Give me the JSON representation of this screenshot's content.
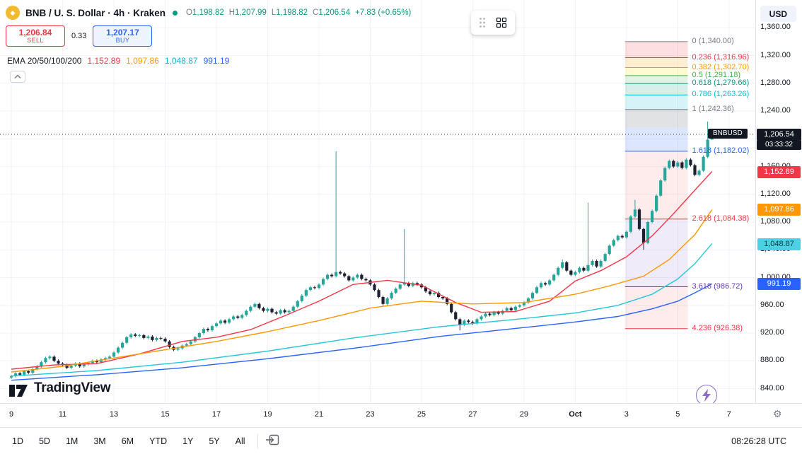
{
  "header": {
    "symbol_title": "BNB / U. S. Dollar · 4h · Kraken",
    "ohlc": {
      "o_label": "O",
      "o": "1,198.82",
      "h_label": "H",
      "h": "1,207.99",
      "l_label": "L",
      "l": "1,198.82",
      "c_label": "C",
      "c": "1,206.54",
      "change": "+7.83 (+0.65%)"
    },
    "currency_button": "USD",
    "sell": {
      "price": "1,206.84",
      "label": "SELL"
    },
    "spread": "0.33",
    "buy": {
      "price": "1,207.17",
      "label": "BUY"
    },
    "ema_legend": {
      "name": "EMA",
      "params": "20/50/100/200",
      "values": [
        {
          "text": "1,152.89",
          "color": "#f23645"
        },
        {
          "text": "1,097.86",
          "color": "#ff9800"
        },
        {
          "text": "1,048.87",
          "color": "#00bcd4"
        },
        {
          "text": "991.19",
          "color": "#2962ff"
        }
      ]
    }
  },
  "chart_data": {
    "type": "candlestick",
    "symbol": "BNBUSD",
    "exchange": "Kraken",
    "interval": "4h",
    "ylim": [
      840,
      1360
    ],
    "up_color": "#26a69a",
    "down_color": "#1c2030",
    "first_open": 856,
    "closes": [
      858,
      862,
      860,
      865,
      863,
      868,
      872,
      878,
      884,
      886,
      880,
      876,
      874,
      870,
      873,
      876,
      872,
      875,
      877,
      880,
      878,
      882,
      884,
      886,
      892,
      899,
      906,
      914,
      918,
      916,
      917,
      913,
      915,
      910,
      913,
      912,
      908,
      900,
      896,
      898,
      902,
      904,
      908,
      914,
      920,
      926,
      924,
      930,
      934,
      938,
      935,
      940,
      944,
      942,
      946,
      952,
      958,
      962,
      956,
      952,
      955,
      950,
      948,
      953,
      950,
      952,
      958,
      966,
      974,
      982,
      986,
      985,
      990,
      998,
      1004,
      1002,
      1008,
      1006,
      1002,
      996,
      1000,
      1004,
      998,
      996,
      990,
      982,
      972,
      962,
      970,
      978,
      984,
      990,
      992,
      988,
      992,
      990,
      986,
      980,
      976,
      978,
      972,
      970,
      962,
      950,
      940,
      932,
      938,
      936,
      934,
      940,
      944,
      948,
      946,
      950,
      948,
      952,
      956,
      953,
      958,
      960,
      964,
      970,
      978,
      986,
      992,
      990,
      996,
      1004,
      1014,
      1022,
      1010,
      1004,
      1008,
      1014,
      1010,
      1018,
      1024,
      1016,
      1024,
      1034,
      1046,
      1054,
      1060,
      1058,
      1066,
      1088,
      1098,
      1070,
      1050,
      1080,
      1096,
      1118,
      1140,
      1158,
      1168,
      1160,
      1166,
      1158,
      1170,
      1162,
      1148,
      1154,
      1174,
      1198.82,
      1206.54
    ],
    "wick_overrides": {
      "76": [
        1182,
        null
      ],
      "92": [
        1070,
        null
      ],
      "105": [
        null,
        924
      ],
      "129": [
        1026,
        null
      ],
      "135": [
        1108,
        null
      ],
      "146": [
        1112,
        null
      ],
      "148": [
        null,
        1040
      ],
      "163": [
        1225,
        null
      ],
      "164": [
        1207.99,
        1198.82
      ]
    },
    "current_bar": {
      "open": 1198.82,
      "high": 1207.99,
      "low": 1198.82,
      "close": 1206.54
    },
    "price_line": 1206.54,
    "emas": [
      {
        "period": 20,
        "color": "#f23645",
        "value": 1152.89,
        "points": [
          [
            0,
            868
          ],
          [
            10,
            874
          ],
          [
            20,
            876
          ],
          [
            30,
            890
          ],
          [
            40,
            908
          ],
          [
            48,
            914
          ],
          [
            56,
            925
          ],
          [
            64,
            945
          ],
          [
            72,
            966
          ],
          [
            80,
            990
          ],
          [
            88,
            996
          ],
          [
            96,
            989
          ],
          [
            104,
            964
          ],
          [
            110,
            950
          ],
          [
            118,
            951
          ],
          [
            126,
            966
          ],
          [
            132,
            995
          ],
          [
            138,
            1010
          ],
          [
            144,
            1030
          ],
          [
            150,
            1060
          ],
          [
            155,
            1092
          ],
          [
            160,
            1126
          ],
          [
            164,
            1152.89
          ]
        ]
      },
      {
        "period": 50,
        "color": "#ff9800",
        "value": 1097.86,
        "points": [
          [
            0,
            864
          ],
          [
            12,
            872
          ],
          [
            24,
            884
          ],
          [
            36,
            896
          ],
          [
            48,
            908
          ],
          [
            60,
            922
          ],
          [
            72,
            938
          ],
          [
            84,
            956
          ],
          [
            96,
            966
          ],
          [
            108,
            962
          ],
          [
            120,
            964
          ],
          [
            132,
            976
          ],
          [
            140,
            988
          ],
          [
            148,
            1002
          ],
          [
            154,
            1026
          ],
          [
            160,
            1062
          ],
          [
            164,
            1097.86
          ]
        ]
      },
      {
        "period": 100,
        "color": "#26c6da",
        "value": 1048.87,
        "points": [
          [
            0,
            858
          ],
          [
            20,
            866
          ],
          [
            40,
            878
          ],
          [
            60,
            894
          ],
          [
            80,
            913
          ],
          [
            100,
            929
          ],
          [
            120,
            941
          ],
          [
            132,
            949
          ],
          [
            142,
            960
          ],
          [
            150,
            976
          ],
          [
            156,
            998
          ],
          [
            160,
            1020
          ],
          [
            164,
            1048.87
          ]
        ]
      },
      {
        "period": 200,
        "color": "#2962ff",
        "value": 991.19,
        "points": [
          [
            0,
            852
          ],
          [
            20,
            860
          ],
          [
            40,
            870
          ],
          [
            60,
            883
          ],
          [
            80,
            898
          ],
          [
            100,
            915
          ],
          [
            120,
            928
          ],
          [
            132,
            936
          ],
          [
            142,
            944
          ],
          [
            150,
            955
          ],
          [
            156,
            966
          ],
          [
            160,
            978
          ],
          [
            164,
            991.19
          ]
        ]
      }
    ],
    "fib": {
      "x_start_index": 144,
      "x_end_index": 158,
      "levels": [
        {
          "level": "0",
          "price": 1340.0,
          "label": "0 (1,340.00)",
          "color": "#787b86"
        },
        {
          "level": "0.236",
          "price": 1316.96,
          "label": "0.236 (1,316.96)",
          "color": "#f23645"
        },
        {
          "level": "0.382",
          "price": 1302.7,
          "label": "0.382 (1,302.70)",
          "color": "#ff9800"
        },
        {
          "level": "0.5",
          "price": 1291.18,
          "label": "0.5 (1,291.18)",
          "color": "#4caf50"
        },
        {
          "level": "0.618",
          "price": 1279.66,
          "label": "0.618 (1,279.66)",
          "color": "#089981"
        },
        {
          "level": "0.786",
          "price": 1263.26,
          "label": "0.786 (1,263.26)",
          "color": "#00bcd4"
        },
        {
          "level": "1",
          "price": 1242.36,
          "label": "1 (1,242.36)",
          "color": "#787b86"
        },
        {
          "level": "1.618",
          "price": 1182.02,
          "label": "1.618 (1,182.02)",
          "color": "#2962ff"
        },
        {
          "level": "2.618",
          "price": 1084.38,
          "label": "2.618 (1,084.38)",
          "color": "#f23645"
        },
        {
          "level": "3.618",
          "price": 986.72,
          "label": "3.618 (986.72)",
          "color": "#673ab7"
        },
        {
          "level": "4.236",
          "price": 926.38,
          "label": "4.236 (926.38)",
          "color": "#f23645"
        }
      ],
      "bands": [
        {
          "from": 1340.0,
          "to": 1316.96,
          "fill": "rgba(242,54,69,0.16)"
        },
        {
          "from": 1316.96,
          "to": 1302.7,
          "fill": "rgba(255,152,0,0.16)"
        },
        {
          "from": 1302.7,
          "to": 1291.18,
          "fill": "rgba(255,235,59,0.24)"
        },
        {
          "from": 1291.18,
          "to": 1279.66,
          "fill": "rgba(76,175,80,0.16)"
        },
        {
          "from": 1279.66,
          "to": 1263.26,
          "fill": "rgba(8,153,129,0.16)"
        },
        {
          "from": 1263.26,
          "to": 1242.36,
          "fill": "rgba(0,188,212,0.16)"
        },
        {
          "from": 1242.36,
          "to": 1216.0,
          "fill": "rgba(120,123,134,0.22)"
        },
        {
          "from": 1216.0,
          "to": 1182.02,
          "fill": "rgba(41,98,255,0.16)"
        },
        {
          "from": 1182.02,
          "to": 1084.38,
          "fill": "rgba(242,54,69,0.10)"
        },
        {
          "from": 1084.38,
          "to": 986.72,
          "fill": "rgba(103,58,183,0.10)"
        },
        {
          "from": 986.72,
          "to": 926.38,
          "fill": "rgba(242,54,69,0.10)"
        }
      ]
    }
  },
  "price_axis": {
    "ticks": [
      {
        "text": "1,360.00",
        "price": 1360
      },
      {
        "text": "1,320.00",
        "price": 1320
      },
      {
        "text": "1,280.00",
        "price": 1280
      },
      {
        "text": "1,240.00",
        "price": 1240
      },
      {
        "text": "1,200.00",
        "price": 1200
      },
      {
        "text": "1,160.00",
        "price": 1160
      },
      {
        "text": "1,120.00",
        "price": 1120
      },
      {
        "text": "1,080.00",
        "price": 1080
      },
      {
        "text": "1,040.00",
        "price": 1040
      },
      {
        "text": "1,000.00",
        "price": 1000
      },
      {
        "text": "960.00",
        "price": 960
      },
      {
        "text": "920.00",
        "price": 920
      },
      {
        "text": "880.00",
        "price": 880
      },
      {
        "text": "840.00",
        "price": 840
      }
    ],
    "ema_badges": [
      {
        "text": "1,152.89",
        "price": 1152.89,
        "bg": "#f23645",
        "fg": "#ffffff"
      },
      {
        "text": "1,097.86",
        "price": 1097.86,
        "bg": "#ff9800",
        "fg": "#ffffff"
      },
      {
        "text": "1,048.87",
        "price": 1048.87,
        "bg": "#4dd0e1",
        "fg": "#0c3a42"
      },
      {
        "text": "991.19",
        "price": 991.19,
        "bg": "#2962ff",
        "fg": "#ffffff"
      }
    ],
    "price_label": {
      "symbol": "BNBUSD",
      "price_text": "1,206.54",
      "price": 1206.54,
      "countdown": "03:33:32"
    }
  },
  "time_axis": {
    "labels": [
      {
        "text": "9",
        "day": 0
      },
      {
        "text": "11",
        "day": 2
      },
      {
        "text": "13",
        "day": 4
      },
      {
        "text": "15",
        "day": 6
      },
      {
        "text": "17",
        "day": 8
      },
      {
        "text": "19",
        "day": 10
      },
      {
        "text": "21",
        "day": 12
      },
      {
        "text": "23",
        "day": 14
      },
      {
        "text": "25",
        "day": 16
      },
      {
        "text": "27",
        "day": 18
      },
      {
        "text": "29",
        "day": 20
      },
      {
        "text": "Oct",
        "day": 22,
        "strong": true
      },
      {
        "text": "3",
        "day": 24
      },
      {
        "text": "5",
        "day": 26
      },
      {
        "text": "7",
        "day": 28
      }
    ]
  },
  "toolbar": {
    "ranges": [
      "1D",
      "5D",
      "1M",
      "3M",
      "6M",
      "YTD",
      "1Y",
      "5Y",
      "All"
    ],
    "clock": "08:26:28 UTC"
  },
  "branding": {
    "label": "TradingView"
  }
}
